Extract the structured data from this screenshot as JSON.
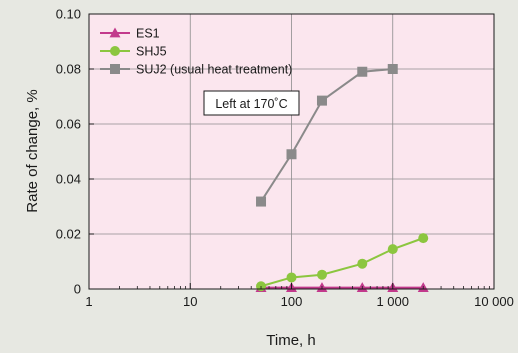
{
  "chart_data": {
    "type": "line",
    "xlabel": "Time, h",
    "ylabel": "Rate of change, %",
    "xscale": "log",
    "xlim": [
      1,
      10000
    ],
    "ylim": [
      0,
      0.1
    ],
    "x_ticks": [
      1,
      10,
      100,
      1000,
      10000
    ],
    "x_tick_labels": [
      "1",
      "10",
      "100",
      "1 000",
      "10 000"
    ],
    "y_ticks": [
      0,
      0.02,
      0.04,
      0.06,
      0.08,
      0.1
    ],
    "y_tick_labels": [
      "0",
      "0.02",
      "0.04",
      "0.06",
      "0.08",
      "0.10"
    ],
    "grid": true,
    "legend_position": "top-left",
    "annotation": "Left at 170˚C",
    "plot_background": "#fbe6ee",
    "series": [
      {
        "name": "ES1",
        "marker": "triangle",
        "color": "#c23a8c",
        "x": [
          50,
          100,
          200,
          500,
          1000,
          2000
        ],
        "y": [
          0.0005,
          0.0005,
          0.0005,
          0.0005,
          0.0005,
          0.0005
        ]
      },
      {
        "name": "SHJ5",
        "marker": "circle",
        "color": "#8cc63f",
        "x": [
          50,
          100,
          200,
          500,
          1000,
          2000
        ],
        "y": [
          0.001,
          0.0042,
          0.0052,
          0.0092,
          0.0145,
          0.0185
        ]
      },
      {
        "name": "SUJ2 (usual heat treatment)",
        "marker": "square",
        "color": "#8a8a8a",
        "x": [
          50,
          100,
          200,
          500,
          1000
        ],
        "y": [
          0.0318,
          0.049,
          0.0685,
          0.079,
          0.08
        ]
      }
    ]
  }
}
